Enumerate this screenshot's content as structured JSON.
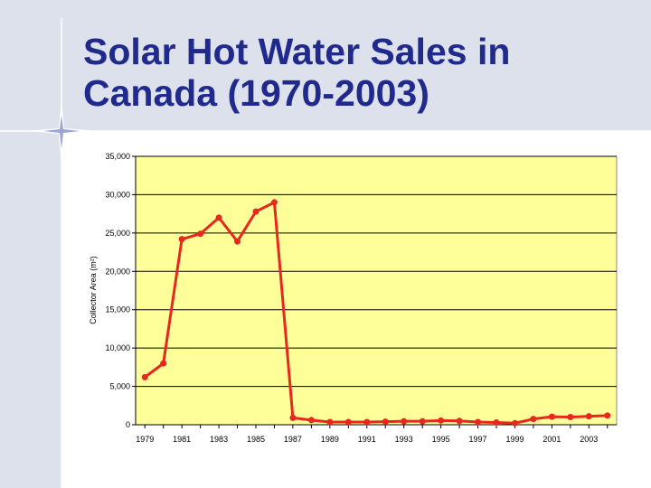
{
  "slide": {
    "title": "Solar Hot Water Sales in Canada (1970-2003)"
  },
  "colors": {
    "background_band": "#dde1ec",
    "title": "#1f2a8c",
    "plot_area": "#ffff99",
    "series": "#e8281e"
  },
  "chart_data": {
    "type": "line",
    "title": "",
    "xlabel": "",
    "ylabel": "Collector Area (m²)",
    "ylim": [
      0,
      35000
    ],
    "yticks": [
      0,
      5000,
      10000,
      15000,
      20000,
      25000,
      30000,
      35000
    ],
    "ytick_labels": [
      "0",
      "5,000",
      "10,000",
      "15,000",
      "20,000",
      "25,000",
      "30,000",
      "35,000"
    ],
    "xtick_labels": [
      "1979",
      "1981",
      "1983",
      "1985",
      "1987",
      "1989",
      "1991",
      "1993",
      "1995",
      "1997",
      "1999",
      "2001",
      "2003"
    ],
    "grid": true,
    "x": [
      1979,
      1980,
      1981,
      1982,
      1983,
      1984,
      1985,
      1986,
      1987,
      1988,
      1989,
      1990,
      1991,
      1992,
      1993,
      1994,
      1995,
      1996,
      1997,
      1998,
      1999,
      2000,
      2001,
      2002,
      2003,
      2004
    ],
    "series": [
      {
        "values": [
          6200,
          8000,
          24200,
          24900,
          27000,
          23900,
          27800,
          29000,
          900,
          600,
          350,
          350,
          350,
          400,
          450,
          450,
          550,
          500,
          350,
          300,
          200,
          750,
          1050,
          1000,
          1100,
          1200
        ]
      }
    ]
  }
}
